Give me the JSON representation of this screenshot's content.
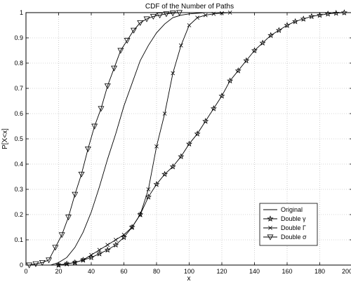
{
  "chart_data": {
    "type": "line",
    "title": "CDF of the Number of Paths",
    "xlabel": "x",
    "ylabel": "P[X<x]",
    "xlim": [
      0,
      200
    ],
    "ylim": [
      0,
      1
    ],
    "xticks": [
      0,
      20,
      40,
      60,
      80,
      100,
      120,
      140,
      160,
      180,
      200
    ],
    "yticks": [
      0,
      0.1,
      0.2,
      0.3,
      0.4,
      0.5,
      0.6,
      0.7,
      0.8,
      0.9,
      1
    ],
    "grid": true,
    "legend_position": "bottom-right",
    "series": [
      {
        "name": "Original",
        "marker": "none",
        "x": [
          15,
          20,
          25,
          30,
          35,
          40,
          45,
          50,
          55,
          60,
          65,
          70,
          75,
          80,
          85,
          90,
          95,
          100,
          110,
          120
        ],
        "y": [
          0,
          0.01,
          0.03,
          0.07,
          0.13,
          0.21,
          0.31,
          0.42,
          0.52,
          0.63,
          0.72,
          0.81,
          0.87,
          0.92,
          0.955,
          0.98,
          0.99,
          0.995,
          1.0,
          1.0
        ]
      },
      {
        "name": "Double γ",
        "marker": "star",
        "x": [
          20,
          25,
          30,
          35,
          40,
          45,
          50,
          55,
          60,
          65,
          70,
          75,
          80,
          85,
          90,
          95,
          100,
          105,
          110,
          115,
          120,
          125,
          130,
          135,
          140,
          145,
          150,
          155,
          160,
          165,
          170,
          175,
          180,
          185,
          190,
          195
        ],
        "y": [
          0.0,
          0.005,
          0.01,
          0.02,
          0.03,
          0.045,
          0.06,
          0.08,
          0.11,
          0.15,
          0.2,
          0.27,
          0.32,
          0.36,
          0.39,
          0.43,
          0.48,
          0.52,
          0.57,
          0.62,
          0.67,
          0.73,
          0.77,
          0.81,
          0.85,
          0.88,
          0.91,
          0.93,
          0.95,
          0.965,
          0.975,
          0.985,
          0.99,
          0.995,
          0.998,
          1.0
        ]
      },
      {
        "name": "Double Γ",
        "marker": "x",
        "x": [
          20,
          25,
          30,
          35,
          40,
          45,
          50,
          55,
          60,
          65,
          70,
          75,
          80,
          85,
          90,
          95,
          100,
          105,
          110,
          115,
          120,
          125
        ],
        "y": [
          0.0,
          0.005,
          0.01,
          0.02,
          0.04,
          0.06,
          0.08,
          0.1,
          0.12,
          0.15,
          0.2,
          0.3,
          0.47,
          0.6,
          0.76,
          0.87,
          0.95,
          0.98,
          0.99,
          0.995,
          0.998,
          1.0
        ]
      },
      {
        "name": "Double σ",
        "marker": "triangle-down",
        "x": [
          2,
          6,
          10,
          14,
          18,
          22,
          26,
          30,
          34,
          38,
          42,
          46,
          50,
          54,
          58,
          62,
          66,
          70,
          74,
          78,
          82,
          86,
          90,
          94
        ],
        "y": [
          0.0,
          0.005,
          0.01,
          0.02,
          0.07,
          0.12,
          0.19,
          0.28,
          0.36,
          0.46,
          0.55,
          0.62,
          0.71,
          0.78,
          0.85,
          0.89,
          0.93,
          0.96,
          0.975,
          0.985,
          0.99,
          0.995,
          0.998,
          1.0
        ]
      }
    ]
  }
}
